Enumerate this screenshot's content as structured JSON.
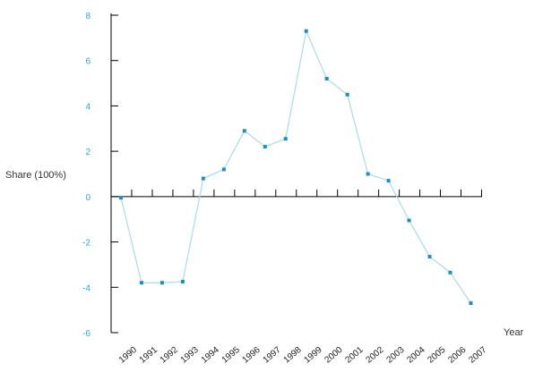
{
  "chart_data": {
    "type": "line",
    "xlabel": "Year",
    "ylabel": "Share (100%)",
    "ylim": [
      -6,
      8
    ],
    "yticks": [
      -6,
      -4,
      -2,
      0,
      2,
      4,
      6,
      8
    ],
    "categories": [
      "1990",
      "1991",
      "1992",
      "1993",
      "1994",
      "1995",
      "1996",
      "1997",
      "1998",
      "1999",
      "2000",
      "2001",
      "2002",
      "2003",
      "2004",
      "2005",
      "2006",
      "2007"
    ],
    "series": [
      {
        "values": [
          -0.05,
          -3.8,
          -3.8,
          -3.75,
          0.8,
          1.2,
          2.9,
          2.2,
          2.55,
          7.3,
          5.2,
          4.5,
          1.0,
          0.7,
          -1.05,
          -2.65,
          -3.35,
          -4.7
        ]
      }
    ],
    "colors": {
      "line": "#a8dce8",
      "marker": "#1a8fc4",
      "ytick_text": "#29a9d9",
      "axis": "#000000"
    }
  }
}
